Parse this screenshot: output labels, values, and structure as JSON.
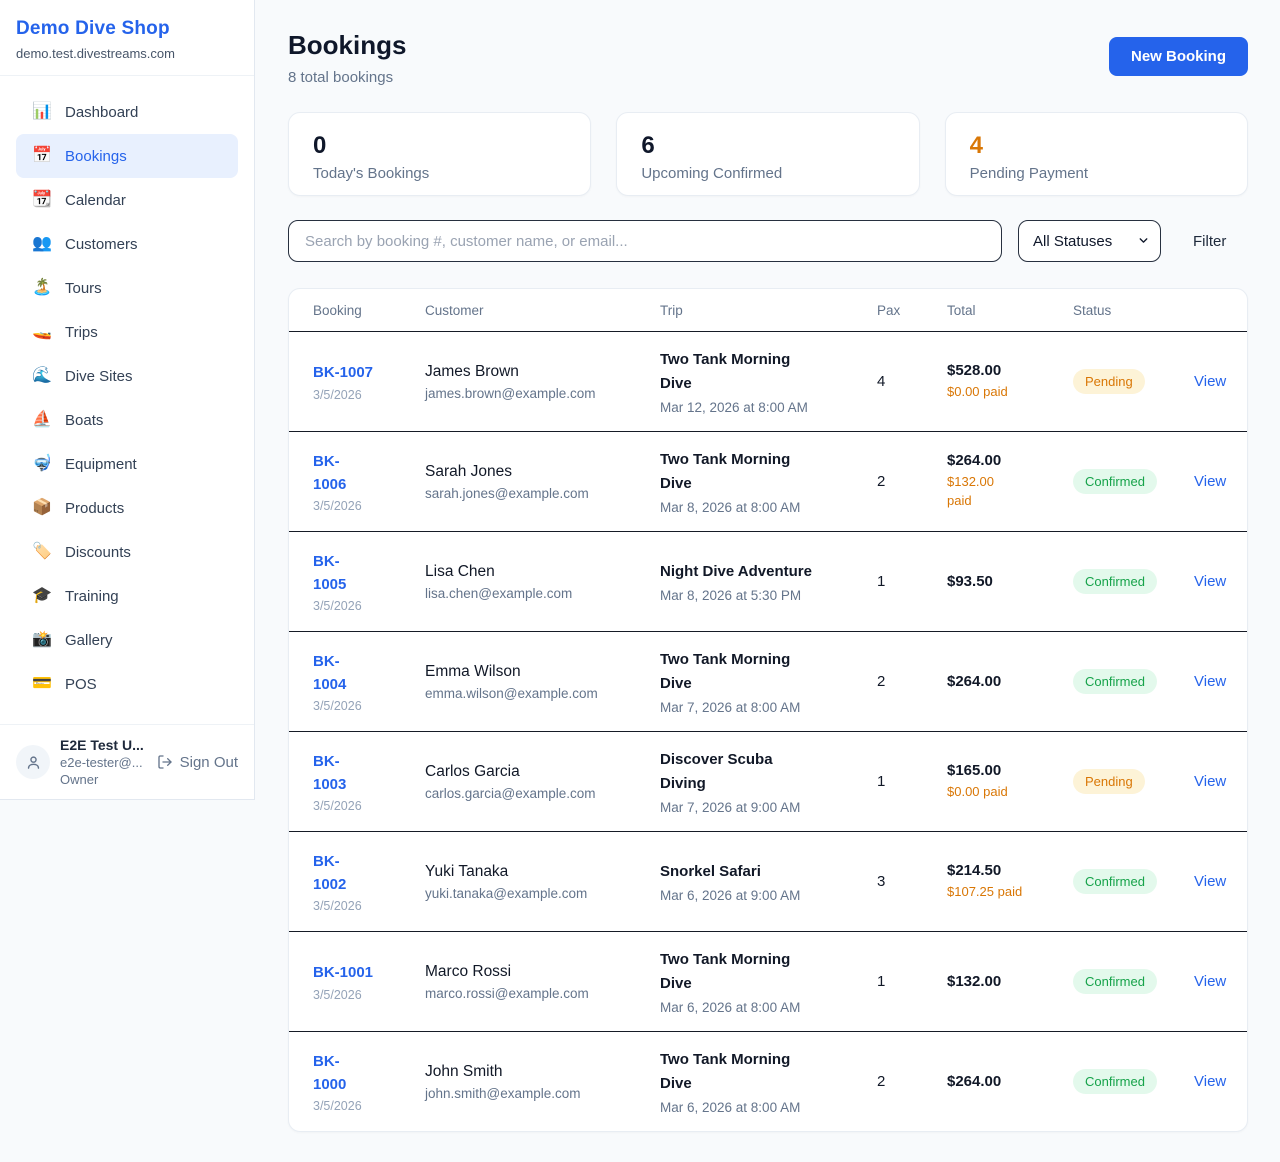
{
  "sidebar": {
    "shop_name": "Demo Dive Shop",
    "shop_domain": "demo.test.divestreams.com",
    "nav": [
      {
        "name": "dashboard",
        "icon": "📊",
        "label": "Dashboard",
        "active": false
      },
      {
        "name": "bookings",
        "icon": "📅",
        "label": "Bookings",
        "active": true
      },
      {
        "name": "calendar",
        "icon": "📆",
        "label": "Calendar",
        "active": false
      },
      {
        "name": "customers",
        "icon": "👥",
        "label": "Customers",
        "active": false
      },
      {
        "name": "tours",
        "icon": "🏝️",
        "label": "Tours",
        "active": false
      },
      {
        "name": "trips",
        "icon": "🚤",
        "label": "Trips",
        "active": false
      },
      {
        "name": "dive-sites",
        "icon": "🌊",
        "label": "Dive Sites",
        "active": false
      },
      {
        "name": "boats",
        "icon": "⛵",
        "label": "Boats",
        "active": false
      },
      {
        "name": "equipment",
        "icon": "🤿",
        "label": "Equipment",
        "active": false
      },
      {
        "name": "products",
        "icon": "📦",
        "label": "Products",
        "active": false
      },
      {
        "name": "discounts",
        "icon": "🏷️",
        "label": "Discounts",
        "active": false
      },
      {
        "name": "training",
        "icon": "🎓",
        "label": "Training",
        "active": false
      },
      {
        "name": "gallery",
        "icon": "📸",
        "label": "Gallery",
        "active": false
      },
      {
        "name": "pos",
        "icon": "💳",
        "label": "POS",
        "active": false
      }
    ],
    "user": {
      "name": "E2E Test U...",
      "email": "e2e-tester@...",
      "role": "Owner",
      "sign_out_label": "Sign Out"
    }
  },
  "header": {
    "title": "Bookings",
    "subtitle": "8 total bookings",
    "new_booking_label": "New Booking"
  },
  "stats": [
    {
      "value": "0",
      "label": "Today's Bookings",
      "color": "#0f172a"
    },
    {
      "value": "6",
      "label": "Upcoming Confirmed",
      "color": "#0f172a"
    },
    {
      "value": "4",
      "label": "Pending Payment",
      "color": "#d97706"
    }
  ],
  "controls": {
    "search_placeholder": "Search by booking #, customer name, or email...",
    "status_filter_value": "All Statuses",
    "filter_label": "Filter"
  },
  "table": {
    "columns": [
      "Booking",
      "Customer",
      "Trip",
      "Pax",
      "Total",
      "Status"
    ],
    "view_label": "View",
    "status_styles": {
      "Pending": {
        "bg": "#fdf3d7",
        "color": "#d97706"
      },
      "Confirmed": {
        "bg": "#e3f9ec",
        "color": "#16a34a"
      }
    },
    "rows": [
      {
        "booking": "BK-1007",
        "date": "3/5/2026",
        "customer": "James Brown",
        "email": "james.brown@example.com",
        "trip": "Two Tank Morning\nDive",
        "trip_time": "Mar 12, 2026 at 8:00 AM",
        "pax": "4",
        "total": "$528.00",
        "paid": "$0.00 paid",
        "status": "Pending"
      },
      {
        "booking": "BK-\n1006",
        "date": "3/5/2026",
        "customer": "Sarah Jones",
        "email": "sarah.jones@example.com",
        "trip": "Two Tank Morning\nDive",
        "trip_time": "Mar 8, 2026 at 8:00 AM",
        "pax": "2",
        "total": "$264.00",
        "paid": "$132.00\npaid",
        "status": "Confirmed"
      },
      {
        "booking": "BK-\n1005",
        "date": "3/5/2026",
        "customer": "Lisa Chen",
        "email": "lisa.chen@example.com",
        "trip": "Night Dive Adventure",
        "trip_time": "Mar 8, 2026 at 5:30 PM",
        "pax": "1",
        "total": "$93.50",
        "paid": null,
        "status": "Confirmed"
      },
      {
        "booking": "BK-\n1004",
        "date": "3/5/2026",
        "customer": "Emma Wilson",
        "email": "emma.wilson@example.com",
        "trip": "Two Tank Morning\nDive",
        "trip_time": "Mar 7, 2026 at 8:00 AM",
        "pax": "2",
        "total": "$264.00",
        "paid": null,
        "status": "Confirmed"
      },
      {
        "booking": "BK-\n1003",
        "date": "3/5/2026",
        "customer": "Carlos Garcia",
        "email": "carlos.garcia@example.com",
        "trip": "Discover Scuba\nDiving",
        "trip_time": "Mar 7, 2026 at 9:00 AM",
        "pax": "1",
        "total": "$165.00",
        "paid": "$0.00 paid",
        "status": "Pending"
      },
      {
        "booking": "BK-\n1002",
        "date": "3/5/2026",
        "customer": "Yuki Tanaka",
        "email": "yuki.tanaka@example.com",
        "trip": "Snorkel Safari",
        "trip_time": "Mar 6, 2026 at 9:00 AM",
        "pax": "3",
        "total": "$214.50",
        "paid": "$107.25 paid",
        "status": "Confirmed"
      },
      {
        "booking": "BK-1001",
        "date": "3/5/2026",
        "customer": "Marco Rossi",
        "email": "marco.rossi@example.com",
        "trip": "Two Tank Morning\nDive",
        "trip_time": "Mar 6, 2026 at 8:00 AM",
        "pax": "1",
        "total": "$132.00",
        "paid": null,
        "status": "Confirmed"
      },
      {
        "booking": "BK-\n1000",
        "date": "3/5/2026",
        "customer": "John Smith",
        "email": "john.smith@example.com",
        "trip": "Two Tank Morning\nDive",
        "trip_time": "Mar 6, 2026 at 8:00 AM",
        "pax": "2",
        "total": "$264.00",
        "paid": null,
        "status": "Confirmed"
      }
    ]
  }
}
